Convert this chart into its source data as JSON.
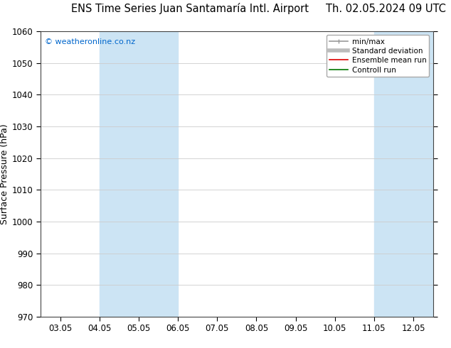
{
  "title_left": "ENS Time Series Juan Santamaría Intl. Airport",
  "title_right": "Th. 02.05.2024 09 UTC",
  "ylabel": "Surface Pressure (hPa)",
  "ylim": [
    970,
    1060
  ],
  "yticks": [
    970,
    980,
    990,
    1000,
    1010,
    1020,
    1030,
    1040,
    1050,
    1060
  ],
  "xtick_labels": [
    "03.05",
    "04.05",
    "05.05",
    "06.05",
    "07.05",
    "08.05",
    "09.05",
    "10.05",
    "11.05",
    "12.05"
  ],
  "xtick_positions": [
    0,
    1,
    2,
    3,
    4,
    5,
    6,
    7,
    8,
    9
  ],
  "shaded_bands": [
    {
      "xmin": 1.0,
      "xmax": 2.0,
      "color": "#cce4f4"
    },
    {
      "xmin": 2.0,
      "xmax": 3.0,
      "color": "#cce4f4"
    },
    {
      "xmin": 8.0,
      "xmax": 9.0,
      "color": "#cce4f4"
    },
    {
      "xmin": 9.0,
      "xmax": 9.5,
      "color": "#cce4f4"
    }
  ],
  "copyright_text": "© weatheronline.co.nz",
  "copyright_color": "#0066cc",
  "bg_color": "#ffffff",
  "plot_bg_color": "#ffffff",
  "legend_items": [
    {
      "label": "min/max",
      "color": "#999999",
      "lw": 1.2
    },
    {
      "label": "Standard deviation",
      "color": "#bbbbbb",
      "lw": 4
    },
    {
      "label": "Ensemble mean run",
      "color": "#dd0000",
      "lw": 1.2
    },
    {
      "label": "Controll run",
      "color": "#007700",
      "lw": 1.2
    }
  ],
  "title_fontsize": 10.5,
  "tick_label_fontsize": 8.5,
  "ylabel_fontsize": 9,
  "grid_color": "#cccccc",
  "axis_color": "#444444",
  "xlim": [
    -0.5,
    9.5
  ]
}
